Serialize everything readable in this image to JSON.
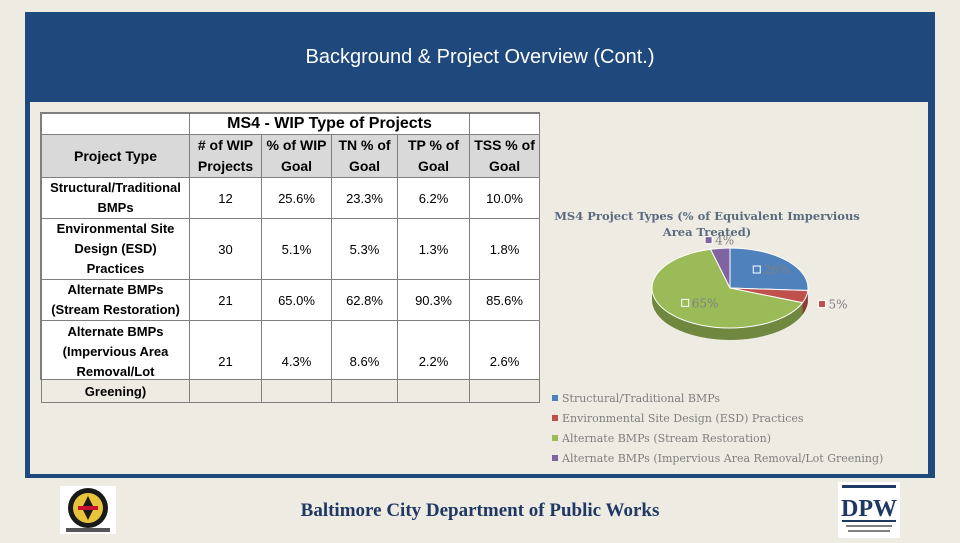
{
  "slide": {
    "title": "Background & Project Overview (Cont.)",
    "footer": "Baltimore City Department of Public Works",
    "colors": {
      "frame": "#1f497d",
      "background": "#eeebe2",
      "table_header": "#d9d9d9"
    }
  },
  "table": {
    "caption": "MS4 - WIP Type of Projects",
    "headers": [
      "Project Type",
      "# of WIP Projects",
      "% of WIP Goal",
      "TN % of Goal",
      "TP % of Goal",
      "TSS % of Goal"
    ],
    "rows": [
      {
        "type": "Structural/Traditional BMPs",
        "projects": "12",
        "wip": "25.6%",
        "tn": "23.3%",
        "tp": "6.2%",
        "tss": "10.0%"
      },
      {
        "type": "Environmental Site Design (ESD) Practices",
        "projects": "30",
        "wip": "5.1%",
        "tn": "5.3%",
        "tp": "1.3%",
        "tss": "1.8%"
      },
      {
        "type": "Alternate BMPs (Stream Restoration)",
        "projects": "21",
        "wip": "65.0%",
        "tn": "62.8%",
        "tp": "90.3%",
        "tss": "85.6%"
      },
      {
        "type": "Alternate BMPs (Impervious Area Removal/Lot Greening)",
        "projects": "21",
        "wip": "4.3%",
        "tn": "8.6%",
        "tp": "2.2%",
        "tss": "2.6%"
      }
    ]
  },
  "chart_data": {
    "type": "pie",
    "title": "MS4 Project Types (% of Equivalent Impervious Area Treated)",
    "categories": [
      "Structural/Traditional BMPs",
      "Environmental Site Design (ESD) Practices",
      "Alternate BMPs (Stream Restoration)",
      "Alternate BMPs (Impervious Area Removal/Lot Greening)"
    ],
    "values": [
      26,
      5,
      65,
      4
    ],
    "labels": [
      "26%",
      "5%",
      "65%",
      "4%"
    ],
    "colors": [
      "#4f81bd",
      "#c0504d",
      "#9bbb59",
      "#8064a2"
    ],
    "legend_position": "bottom"
  },
  "logos": {
    "left": "baltimore-city-seal-icon",
    "right": "dpw-logo-icon",
    "dpw_text": "DPW"
  }
}
